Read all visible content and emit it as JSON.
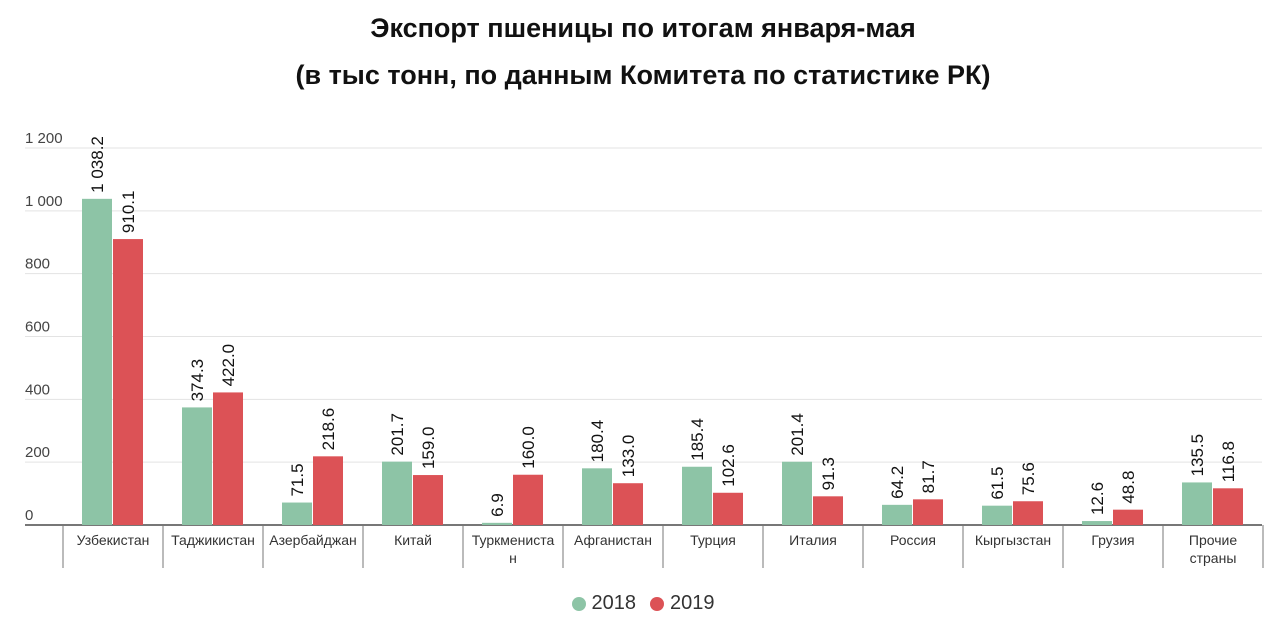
{
  "chart_data": {
    "type": "bar",
    "title": "Экспорт пшеницы по итогам января-мая",
    "subtitle": "(в тыс тонн, по данным Комитета по статистике РК)",
    "xlabel": "",
    "ylabel": "",
    "ylim": [
      0,
      1200
    ],
    "yticks": [
      0,
      200,
      400,
      600,
      800,
      1000,
      1200
    ],
    "ytick_labels": [
      "0",
      "200",
      "400",
      "600",
      "800",
      "1 000",
      "1 200"
    ],
    "grid": true,
    "legend_position": "bottom",
    "categories": [
      [
        "Узбекистан"
      ],
      [
        "Таджикистан"
      ],
      [
        "Азербайджан"
      ],
      [
        "Китай"
      ],
      [
        "Туркмениста",
        "н"
      ],
      [
        "Афганистан"
      ],
      [
        "Турция"
      ],
      [
        "Италия"
      ],
      [
        "Россия"
      ],
      [
        "Кыргызстан"
      ],
      [
        "Грузия"
      ],
      [
        "Прочие",
        "страны"
      ]
    ],
    "series": [
      {
        "name": "2018",
        "color": "#8dc4a6",
        "values": [
          1038.2,
          374.3,
          71.5,
          201.7,
          6.9,
          180.4,
          185.4,
          201.4,
          64.2,
          61.5,
          12.6,
          135.5
        ],
        "labels": [
          "1 038.2",
          "374.3",
          "71.5",
          "201.7",
          "6.9",
          "180.4",
          "185.4",
          "201.4",
          "64.2",
          "61.5",
          "12.6",
          "135.5"
        ]
      },
      {
        "name": "2019",
        "color": "#dc5256",
        "values": [
          910.1,
          422.0,
          218.6,
          159.0,
          160.0,
          133.0,
          102.6,
          91.3,
          81.7,
          75.6,
          48.8,
          116.8
        ],
        "labels": [
          "910.1",
          "422.0",
          "218.6",
          "159.0",
          "160.0",
          "133.0",
          "102.6",
          "91.3",
          "81.7",
          "75.6",
          "48.8",
          "116.8"
        ]
      }
    ]
  }
}
